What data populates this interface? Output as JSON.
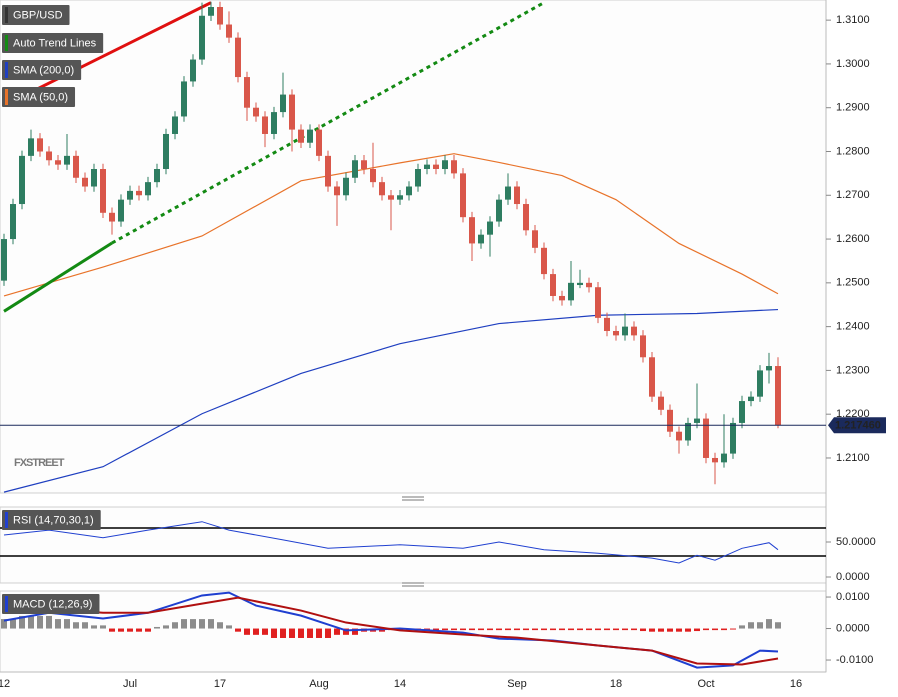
{
  "chart_data": [
    {
      "type": "candlestick",
      "categories": [
        "12",
        null,
        null,
        null,
        null,
        null,
        null,
        null,
        null,
        null,
        null,
        null,
        null,
        null,
        "Jul",
        null,
        null,
        null,
        null,
        null,
        null,
        null,
        null,
        null,
        "17",
        null,
        null,
        null,
        null,
        null,
        null,
        null,
        null,
        null,
        null,
        "Aug",
        null,
        null,
        null,
        null,
        null,
        null,
        null,
        null,
        "14",
        null,
        null,
        null,
        null,
        null,
        null,
        null,
        null,
        null,
        null,
        null,
        null,
        "Sep",
        null,
        null,
        null,
        null,
        null,
        null,
        null,
        null,
        null,
        null,
        "18",
        null,
        null,
        null,
        null,
        null,
        null,
        null,
        null,
        null,
        "Oct",
        null,
        null,
        null,
        null,
        null,
        null,
        null,
        null,
        null,
        "16"
      ],
      "series": [
        {
          "name": "GBP/USD",
          "up_color": "#2e7d61",
          "down_color": "#d9574a",
          "ohlc": [
            [
              1.2505,
              1.2612,
              1.2493,
              1.26
            ],
            [
              1.26,
              1.2692,
              1.2588,
              1.268
            ],
            [
              1.268,
              1.2802,
              1.2668,
              1.279
            ],
            [
              1.279,
              1.285,
              1.2778,
              1.283
            ],
            [
              1.283,
              1.2842,
              1.2788,
              1.28
            ],
            [
              1.28,
              1.2812,
              1.2768,
              1.278
            ],
            [
              1.278,
              1.2792,
              1.2758,
              1.277
            ],
            [
              1.277,
              1.284,
              1.2758,
              1.279
            ],
            [
              1.279,
              1.2802,
              1.2728,
              1.274
            ],
            [
              1.274,
              1.2752,
              1.2708,
              1.272
            ],
            [
              1.272,
              1.2772,
              1.2708,
              1.276
            ],
            [
              1.276,
              1.2772,
              1.2648,
              1.266
            ],
            [
              1.266,
              1.2672,
              1.261,
              1.264
            ],
            [
              1.264,
              1.2702,
              1.2628,
              1.269
            ],
            [
              1.269,
              1.2722,
              1.2678,
              1.271
            ],
            [
              1.271,
              1.2722,
              1.2688,
              1.27
            ],
            [
              1.27,
              1.2742,
              1.2688,
              1.273
            ],
            [
              1.273,
              1.2772,
              1.2718,
              1.276
            ],
            [
              1.276,
              1.2852,
              1.2748,
              1.284
            ],
            [
              1.284,
              1.2892,
              1.2828,
              1.288
            ],
            [
              1.288,
              1.2972,
              1.2868,
              1.296
            ],
            [
              1.296,
              1.3022,
              1.2948,
              1.301
            ],
            [
              1.301,
              1.314,
              1.2998,
              1.311
            ],
            [
              1.311,
              1.3142,
              1.3098,
              1.313
            ],
            [
              1.313,
              1.3142,
              1.3078,
              1.309
            ],
            [
              1.309,
              1.312,
              1.3048,
              1.306
            ],
            [
              1.306,
              1.3072,
              1.2958,
              1.297
            ],
            [
              1.297,
              1.2982,
              1.287,
              1.29
            ],
            [
              1.29,
              1.2912,
              1.2868,
              1.288
            ],
            [
              1.288,
              1.2892,
              1.281,
              1.284
            ],
            [
              1.284,
              1.2902,
              1.2828,
              1.289
            ],
            [
              1.289,
              1.298,
              1.2878,
              1.293
            ],
            [
              1.293,
              1.2942,
              1.28,
              1.285
            ],
            [
              1.285,
              1.2862,
              1.2808,
              1.282
            ],
            [
              1.282,
              1.2862,
              1.2808,
              1.285
            ],
            [
              1.285,
              1.2862,
              1.2778,
              1.279
            ],
            [
              1.279,
              1.2802,
              1.2708,
              1.272
            ],
            [
              1.272,
              1.2732,
              1.263,
              1.27
            ],
            [
              1.27,
              1.2752,
              1.2688,
              1.274
            ],
            [
              1.274,
              1.2792,
              1.2728,
              1.278
            ],
            [
              1.278,
              1.2792,
              1.2748,
              1.276
            ],
            [
              1.276,
              1.282,
              1.2718,
              1.273
            ],
            [
              1.273,
              1.2742,
              1.2688,
              1.27
            ],
            [
              1.27,
              1.2712,
              1.262,
              1.269
            ],
            [
              1.269,
              1.2712,
              1.2678,
              1.27
            ],
            [
              1.27,
              1.2732,
              1.2688,
              1.272
            ],
            [
              1.272,
              1.2772,
              1.2708,
              1.276
            ],
            [
              1.276,
              1.2782,
              1.2748,
              1.277
            ],
            [
              1.277,
              1.2782,
              1.2748,
              1.276
            ],
            [
              1.276,
              1.2792,
              1.2748,
              1.278
            ],
            [
              1.278,
              1.2792,
              1.2738,
              1.275
            ],
            [
              1.275,
              1.2762,
              1.2638,
              1.265
            ],
            [
              1.265,
              1.2662,
              1.255,
              1.259
            ],
            [
              1.259,
              1.2622,
              1.2578,
              1.261
            ],
            [
              1.261,
              1.2652,
              1.256,
              1.264
            ],
            [
              1.264,
              1.2702,
              1.2628,
              1.269
            ],
            [
              1.269,
              1.275,
              1.2678,
              1.272
            ],
            [
              1.272,
              1.2732,
              1.2668,
              1.268
            ],
            [
              1.268,
              1.2692,
              1.2608,
              1.262
            ],
            [
              1.262,
              1.2632,
              1.2568,
              1.258
            ],
            [
              1.258,
              1.2592,
              1.2508,
              1.252
            ],
            [
              1.252,
              1.2532,
              1.2458,
              1.247
            ],
            [
              1.247,
              1.2482,
              1.2448,
              1.246
            ],
            [
              1.246,
              1.255,
              1.2448,
              1.25
            ],
            [
              1.2495,
              1.253,
              1.2488,
              1.25
            ],
            [
              1.25,
              1.2512,
              1.2478,
              1.249
            ],
            [
              1.249,
              1.2502,
              1.2408,
              1.242
            ],
            [
              1.242,
              1.2432,
              1.2378,
              1.239
            ],
            [
              1.239,
              1.2402,
              1.2368,
              1.238
            ],
            [
              1.238,
              1.243,
              1.2368,
              1.24
            ],
            [
              1.24,
              1.2412,
              1.2368,
              1.238
            ],
            [
              1.238,
              1.2392,
              1.2318,
              1.233
            ],
            [
              1.233,
              1.2342,
              1.2228,
              1.224
            ],
            [
              1.224,
              1.2252,
              1.2198,
              1.221
            ],
            [
              1.221,
              1.2222,
              1.2148,
              1.216
            ],
            [
              1.216,
              1.2172,
              1.211,
              1.214
            ],
            [
              1.214,
              1.2192,
              1.2128,
              1.218
            ],
            [
              1.218,
              1.227,
              1.2168,
              1.219
            ],
            [
              1.219,
              1.2202,
              1.2088,
              1.21
            ],
            [
              1.21,
              1.2112,
              1.204,
              1.209
            ],
            [
              1.209,
              1.22,
              1.2078,
              1.211
            ],
            [
              1.211,
              1.2192,
              1.2098,
              1.218
            ],
            [
              1.218,
              1.2242,
              1.2168,
              1.223
            ],
            [
              1.223,
              1.2252,
              1.2218,
              1.224
            ],
            [
              1.224,
              1.2312,
              1.2228,
              1.23
            ],
            [
              1.23,
              1.234,
              1.227,
              1.231
            ],
            [
              1.231,
              1.233,
              1.2168,
              1.2175
            ],
            null,
            null
          ]
        }
      ],
      "lines": [
        {
          "name": "SMA (200,0)",
          "color": "#1f3fc0",
          "x": [
            0,
            11,
            22,
            33,
            44,
            55,
            66,
            77,
            86
          ],
          "values": [
            1.2022,
            1.208,
            1.2201,
            1.2293,
            1.2361,
            1.2407,
            1.2426,
            1.243,
            1.2439
          ]
        },
        {
          "name": "SMA (50,0)",
          "color": "#e8732a",
          "x": [
            0,
            11,
            22,
            33,
            44,
            50,
            55,
            62,
            68,
            75,
            82,
            86
          ],
          "values": [
            1.247,
            1.2536,
            1.2607,
            1.2733,
            1.2774,
            1.2795,
            1.2775,
            1.2745,
            1.269,
            1.259,
            1.252,
            1.2475
          ]
        }
      ],
      "trend_lines": {
        "name": "Auto Trend Lines",
        "segments": [
          {
            "color": "#e01010",
            "style": "solid",
            "x": [
              0,
              23
            ],
            "values": [
              1.2905,
              1.314
            ]
          },
          {
            "color": "#138a13",
            "style": "solid",
            "x": [
              0,
              12
            ],
            "values": [
              1.2435,
              1.2591
            ]
          },
          {
            "color": "#138a13",
            "style": "dotted",
            "x": [
              12,
              60
            ],
            "values": [
              1.2591,
              1.314
            ]
          }
        ]
      },
      "last_price": {
        "value": 1.21746,
        "label": "1.217460"
      },
      "watermark": "FXSTREET",
      "ylim": [
        1.202,
        1.3146
      ],
      "yticks": [
        {
          "value": 1.21,
          "label": "1.2100"
        },
        {
          "value": 1.22,
          "label": "1.2200"
        },
        {
          "value": 1.23,
          "label": "1.2300"
        },
        {
          "value": 1.24,
          "label": "1.2400"
        },
        {
          "value": 1.25,
          "label": "1.2500"
        },
        {
          "value": 1.26,
          "label": "1.2600"
        },
        {
          "value": 1.27,
          "label": "1.2700"
        },
        {
          "value": 1.28,
          "label": "1.2800"
        },
        {
          "value": 1.29,
          "label": "1.2900"
        },
        {
          "value": 1.3,
          "label": "1.3000"
        },
        {
          "value": 1.31,
          "label": "1.3100"
        }
      ]
    },
    {
      "type": "line",
      "title": "RSI (14,70,30,1)",
      "series": [
        {
          "color": "#2040d0",
          "x": [
            0,
            5,
            11,
            16,
            22,
            25,
            31,
            36,
            44,
            51,
            55,
            60,
            66,
            72,
            75,
            77,
            79,
            82,
            85,
            86
          ],
          "values": [
            60,
            67,
            56,
            67,
            79,
            67,
            53,
            41,
            46,
            41,
            50,
            39,
            34,
            27,
            20,
            31,
            24,
            41,
            49,
            39
          ]
        }
      ],
      "levels": [
        70,
        30
      ],
      "ylim": [
        0,
        100
      ],
      "yticks": [
        {
          "value": 50,
          "label": "50.0000"
        },
        {
          "value": 0,
          "label": "0.0000"
        }
      ]
    },
    {
      "type": "macd",
      "title": "MACD (12,26,9)",
      "series": [
        {
          "color": "#1f3fd0",
          "x": [
            0,
            5,
            11,
            16,
            22,
            25,
            28,
            33,
            38,
            44,
            51,
            55,
            61,
            66,
            72,
            77,
            81,
            84,
            86
          ],
          "values": [
            0.0025,
            0.005,
            0.0032,
            0.005,
            0.0105,
            0.0114,
            0.0073,
            0.0041,
            -0.0006,
            0.0,
            -0.0013,
            -0.0032,
            -0.0038,
            -0.0054,
            -0.007,
            -0.0124,
            -0.0117,
            -0.007,
            -0.0073
          ]
        },
        {
          "color": "#b01010",
          "x": [
            0,
            5,
            11,
            16,
            22,
            26,
            33,
            38,
            44,
            51,
            57,
            66,
            72,
            77,
            82,
            86
          ],
          "values": [
            0.005,
            0.0063,
            0.005,
            0.005,
            0.0079,
            0.0098,
            0.0057,
            0.0019,
            -0.0006,
            -0.0019,
            -0.0029,
            -0.0054,
            -0.007,
            -0.0111,
            -0.0114,
            -0.0095
          ]
        }
      ],
      "histogram": {
        "up_color": "#8c8c8c",
        "down_color": "#e02020",
        "values": [
          0.003,
          0.003,
          0.004,
          0.004,
          0.004,
          0.004,
          0.003,
          0.003,
          0.002,
          0.002,
          0.001,
          0.001,
          -0.001,
          -0.001,
          -0.001,
          -0.001,
          -0.001,
          0.0005,
          0.001,
          0.002,
          0.003,
          0.003,
          0.003,
          0.003,
          0.002,
          0.001,
          -0.001,
          -0.002,
          -0.002,
          -0.002,
          -0.003,
          -0.003,
          -0.003,
          -0.003,
          -0.003,
          -0.003,
          -0.003,
          -0.002,
          -0.002,
          -0.002,
          -0.001,
          -0.001,
          -0.001,
          -0.0005,
          -0.0005,
          -0.0005,
          -0.0005,
          -0.0005,
          -0.0005,
          -0.0005,
          -0.0005,
          -0.0005,
          -0.0005,
          -0.0005,
          -0.0005,
          -0.0005,
          -0.0005,
          -0.0005,
          -0.0005,
          -0.0005,
          -0.0005,
          -0.0005,
          -0.0005,
          -0.0005,
          -0.0005,
          -0.0005,
          -0.0005,
          -0.0005,
          -0.0005,
          -0.0005,
          -0.0005,
          -0.0008,
          -0.001,
          -0.001,
          -0.001,
          -0.001,
          -0.001,
          -0.0008,
          -0.0005,
          -0.0005,
          -0.0005,
          -0.0003,
          0.001,
          0.002,
          0.002,
          0.003,
          0.002,
          null,
          null
        ]
      },
      "ylim": [
        -0.0138,
        0.0116
      ],
      "yticks": [
        {
          "value": 0.01,
          "label": "0.0100"
        },
        {
          "value": 0,
          "label": "0.0000"
        },
        {
          "value": -0.01,
          "label": "-0.0100"
        }
      ]
    }
  ]
}
